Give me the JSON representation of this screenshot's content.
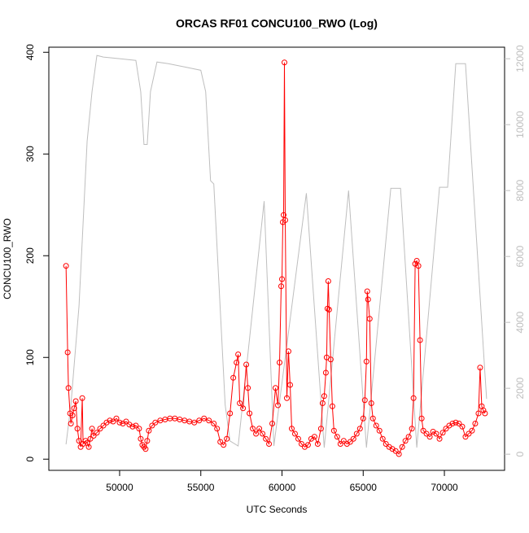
{
  "chart_data": {
    "type": "line",
    "title": "ORCAS RF01 CONCU100_RWO (Log)",
    "x_label": "UTC Seconds",
    "y_label": "CONCU100_RWO",
    "xlim": [
      45641,
      73707
    ],
    "xticks": [
      50000,
      55000,
      60000,
      65000,
      70000
    ],
    "ylim": [
      -11,
      405
    ],
    "yticks": [
      0,
      100,
      200,
      300,
      400
    ],
    "y2lim": [
      -490,
      12350
    ],
    "y2ticks": [
      0,
      2000,
      4000,
      6000,
      8000,
      10000,
      12000
    ],
    "y2_color": "#bebebe",
    "series": [
      {
        "name": "CONCU100_RWO",
        "color": "#ff0000",
        "markers": true,
        "x": [
          46700,
          46800,
          46850,
          46950,
          47000,
          47100,
          47200,
          47300,
          47400,
          47500,
          47600,
          47700,
          47750,
          47900,
          48000,
          48100,
          48200,
          48300,
          48400,
          48600,
          48800,
          49000,
          49200,
          49400,
          49600,
          49800,
          50000,
          50200,
          50400,
          50600,
          50800,
          51000,
          51200,
          51300,
          51400,
          51500,
          51600,
          51700,
          51800,
          52000,
          52200,
          52500,
          52800,
          53100,
          53400,
          53700,
          54000,
          54300,
          54600,
          54900,
          55200,
          55500,
          55800,
          56000,
          56200,
          56400,
          56600,
          56800,
          57000,
          57200,
          57300,
          57400,
          57600,
          57800,
          57900,
          58000,
          58200,
          58400,
          58600,
          58800,
          59000,
          59200,
          59400,
          59600,
          59750,
          59850,
          59950,
          60000,
          60050,
          60100,
          60150,
          60200,
          60300,
          60400,
          60500,
          60600,
          60800,
          61000,
          61200,
          61400,
          61600,
          61800,
          62000,
          62200,
          62400,
          62500,
          62600,
          62700,
          62750,
          62800,
          62850,
          62900,
          63000,
          63100,
          63200,
          63400,
          63600,
          63800,
          64000,
          64200,
          64400,
          64600,
          64800,
          65000,
          65100,
          65200,
          65250,
          65300,
          65400,
          65500,
          65600,
          65800,
          66000,
          66200,
          66400,
          66600,
          66800,
          67000,
          67200,
          67400,
          67600,
          67800,
          68000,
          68100,
          68200,
          68300,
          68400,
          68500,
          68600,
          68700,
          68900,
          69100,
          69300,
          69500,
          69700,
          69900,
          70100,
          70300,
          70500,
          70700,
          70900,
          71100,
          71300,
          71500,
          71700,
          71900,
          72100,
          72200,
          72300,
          72400,
          72500
        ],
        "values": [
          190,
          105,
          70,
          45,
          35,
          43,
          50,
          57,
          30,
          18,
          12,
          60,
          15,
          18,
          16,
          12,
          20,
          30,
          23,
          26,
          30,
          33,
          36,
          38,
          37,
          40,
          36,
          35,
          37,
          34,
          32,
          33,
          30,
          20,
          14,
          12,
          10,
          18,
          28,
          33,
          36,
          38,
          39,
          40,
          40,
          39,
          38,
          37,
          36,
          38,
          40,
          38,
          35,
          30,
          17,
          14,
          20,
          45,
          80,
          95,
          103,
          55,
          50,
          93,
          70,
          45,
          30,
          25,
          30,
          25,
          20,
          15,
          35,
          70,
          53,
          95,
          170,
          177,
          233,
          240,
          390,
          235,
          60,
          106,
          73,
          30,
          25,
          20,
          15,
          12,
          14,
          20,
          22,
          15,
          30,
          55,
          62,
          85,
          100,
          148,
          175,
          147,
          98,
          52,
          28,
          22,
          15,
          18,
          15,
          17,
          20,
          25,
          30,
          40,
          58,
          96,
          165,
          157,
          138,
          55,
          40,
          33,
          28,
          20,
          15,
          12,
          10,
          8,
          5,
          12,
          18,
          22,
          30,
          60,
          192,
          195,
          190,
          117,
          40,
          28,
          25,
          22,
          27,
          25,
          20,
          26,
          30,
          33,
          35,
          36,
          35,
          32,
          22,
          25,
          28,
          35,
          45,
          90,
          52,
          48,
          45
        ]
      },
      {
        "color": "#bebebe",
        "axis": "y2",
        "markers": false,
        "x": [
          46700,
          47000,
          47500,
          48000,
          48300,
          48600,
          49000,
          50000,
          51000,
          51300,
          51500,
          51700,
          51900,
          52300,
          53000,
          54000,
          55000,
          55300,
          55600,
          55800,
          56500,
          56800,
          57300,
          58900,
          59500,
          61500,
          62600,
          64100,
          65200,
          66700,
          67300,
          68300,
          69700,
          70200,
          70700,
          71300,
          72500,
          72600
        ],
        "values": [
          300,
          1500,
          4500,
          9500,
          11000,
          12100,
          12050,
          12000,
          11950,
          11000,
          9400,
          9400,
          11000,
          11900,
          11850,
          11750,
          11650,
          11000,
          8300,
          8200,
          1500,
          400,
          250,
          7680,
          250,
          7920,
          200,
          8000,
          200,
          8070,
          8070,
          200,
          8100,
          8100,
          11850,
          11850,
          2420,
          1680
        ]
      }
    ]
  }
}
